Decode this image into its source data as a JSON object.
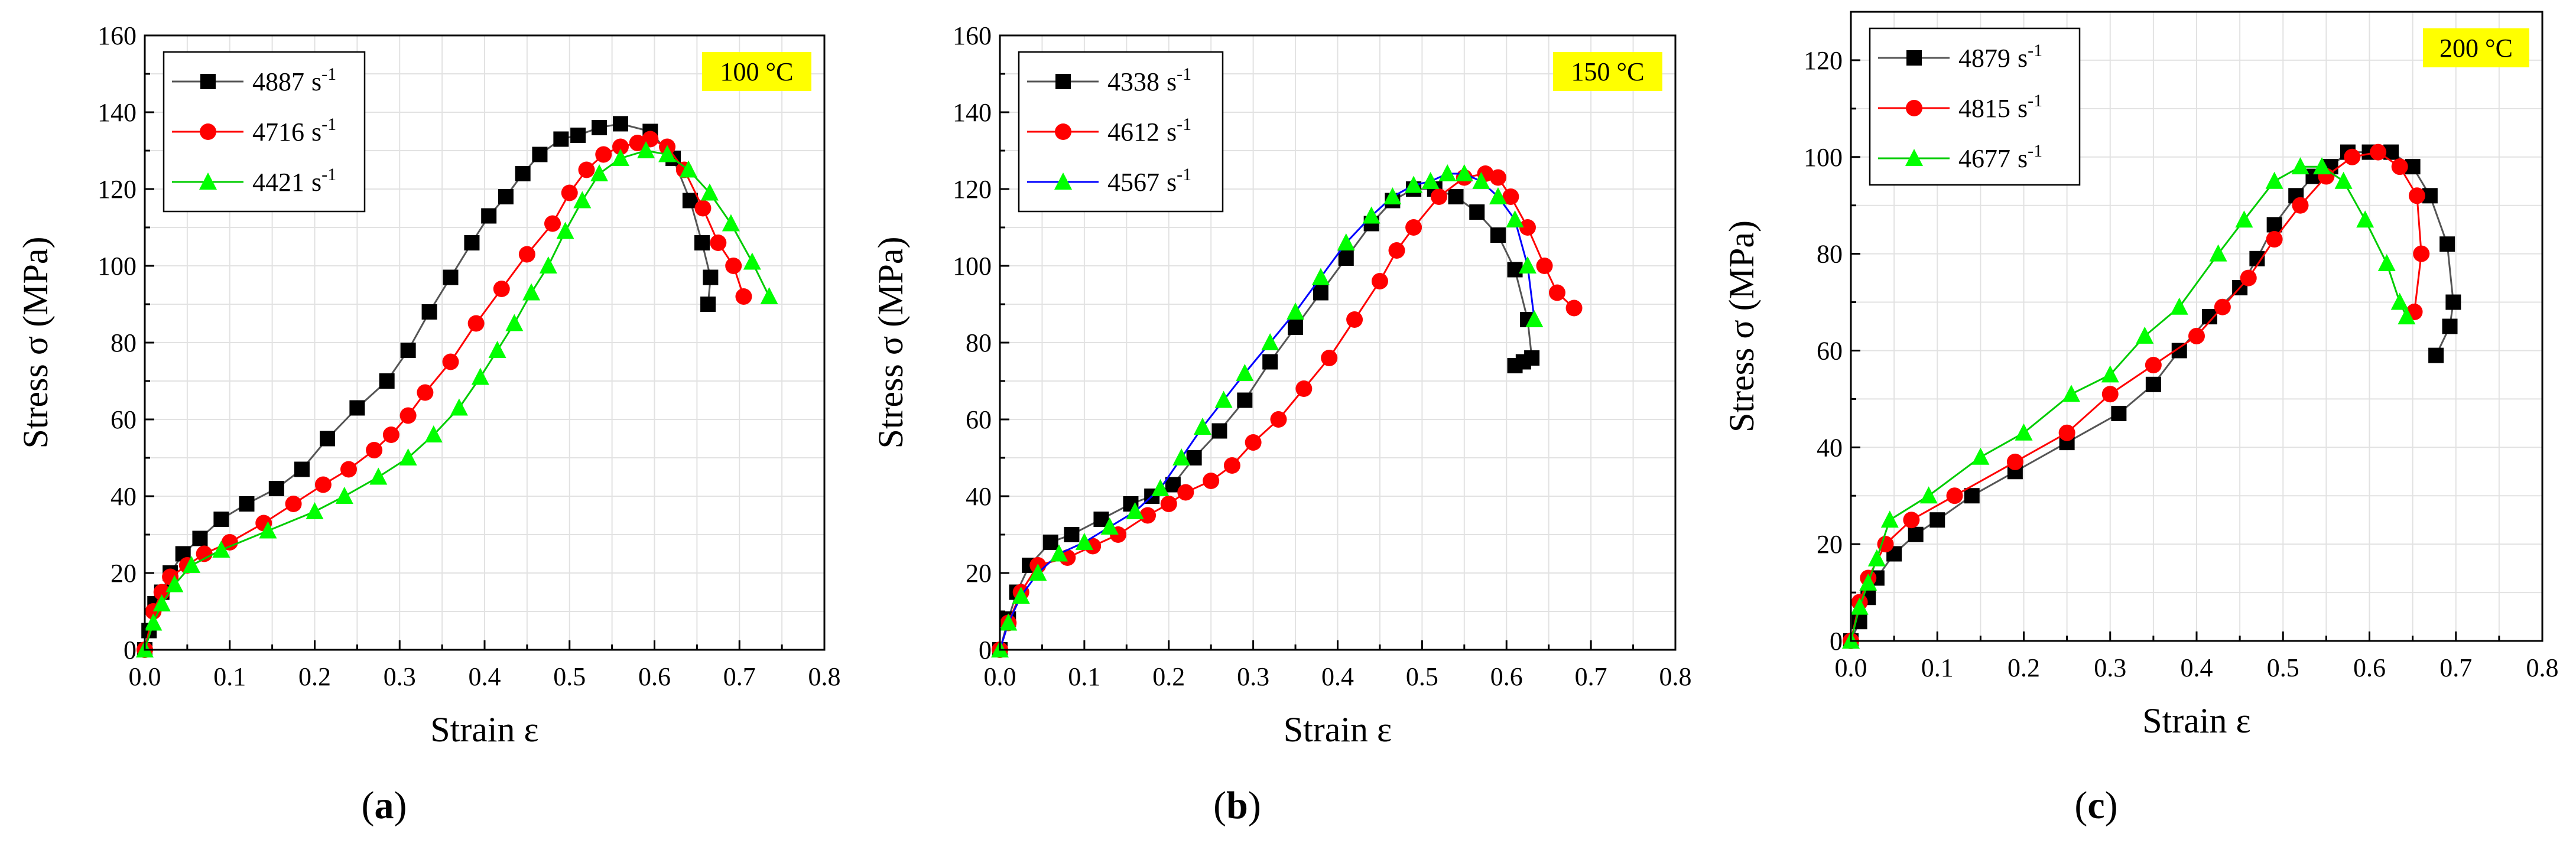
{
  "chart_data": [
    {
      "type": "line",
      "panel_label": "(a)",
      "panel_letter": "a",
      "temperature_label": "100 °C",
      "xlabel": "Strain ε",
      "ylabel": "Stress σ (MPa)",
      "xlim": [
        0,
        0.8
      ],
      "ylim": [
        0,
        160
      ],
      "xticks": [
        0,
        0.1,
        0.2,
        0.3,
        0.4,
        0.5,
        0.6,
        0.7,
        0.8
      ],
      "xtick_labels": [
        "0.0",
        "0.1",
        "0.2",
        "0.3",
        "0.4",
        "0.5",
        "0.6",
        "0.7",
        "0.8"
      ],
      "yticks": [
        0,
        20,
        40,
        60,
        80,
        100,
        120,
        140,
        160
      ],
      "ytick_labels": [
        "0",
        "20",
        "40",
        "60",
        "80",
        "100",
        "120",
        "140",
        "160"
      ],
      "grid": true,
      "legend_position": "top-left",
      "series": [
        {
          "name": "4887 s-1",
          "rate": "4887",
          "unit": "s",
          "exp": "-1",
          "color": "#000000",
          "line_color": "#555555",
          "marker": "square",
          "x": [
            0.0,
            0.005,
            0.012,
            0.02,
            0.03,
            0.045,
            0.065,
            0.09,
            0.12,
            0.155,
            0.185,
            0.215,
            0.25,
            0.285,
            0.31,
            0.335,
            0.36,
            0.385,
            0.405,
            0.425,
            0.445,
            0.465,
            0.49,
            0.51,
            0.535,
            0.56,
            0.595,
            0.622,
            0.642,
            0.656,
            0.666,
            0.663
          ],
          "y": [
            0,
            5,
            12,
            15,
            20,
            25,
            29,
            34,
            38,
            42,
            47,
            55,
            63,
            70,
            78,
            88,
            97,
            106,
            113,
            118,
            124,
            129,
            133,
            134,
            136,
            137,
            135,
            128,
            117,
            106,
            97,
            90
          ]
        },
        {
          "name": "4716 s-1",
          "rate": "4716",
          "unit": "s",
          "exp": "-1",
          "color": "#ff0000",
          "line_color": "#ff0000",
          "marker": "circle",
          "x": [
            0.0,
            0.01,
            0.02,
            0.03,
            0.05,
            0.07,
            0.1,
            0.14,
            0.175,
            0.21,
            0.24,
            0.27,
            0.29,
            0.31,
            0.33,
            0.36,
            0.39,
            0.42,
            0.45,
            0.48,
            0.5,
            0.52,
            0.54,
            0.56,
            0.58,
            0.595,
            0.615,
            0.635,
            0.657,
            0.675,
            0.693,
            0.705
          ],
          "y": [
            0,
            10,
            15,
            19,
            22,
            25,
            28,
            33,
            38,
            43,
            47,
            52,
            56,
            61,
            67,
            75,
            85,
            94,
            103,
            111,
            119,
            125,
            129,
            131,
            132,
            133,
            131,
            125,
            115,
            106,
            100,
            92
          ]
        },
        {
          "name": "4421 s-1",
          "rate": "4421",
          "unit": "s",
          "exp": "-1",
          "color": "#00ff00",
          "line_color": "#00cc00",
          "marker": "triangle",
          "x": [
            0.0,
            0.01,
            0.02,
            0.035,
            0.055,
            0.09,
            0.145,
            0.2,
            0.235,
            0.275,
            0.31,
            0.34,
            0.37,
            0.395,
            0.415,
            0.435,
            0.455,
            0.475,
            0.495,
            0.515,
            0.535,
            0.56,
            0.59,
            0.615,
            0.64,
            0.665,
            0.69,
            0.715,
            0.735
          ],
          "y": [
            0,
            7,
            12,
            17,
            22,
            26,
            31,
            36,
            40,
            45,
            50,
            56,
            63,
            71,
            78,
            85,
            93,
            100,
            109,
            117,
            124,
            128,
            130,
            129,
            125,
            119,
            111,
            101,
            92
          ]
        }
      ]
    },
    {
      "type": "line",
      "panel_label": "(b)",
      "panel_letter": "b",
      "temperature_label": "150 °C",
      "xlabel": "Strain ε",
      "ylabel": "Stress σ (MPa)",
      "xlim": [
        0,
        0.8
      ],
      "ylim": [
        0,
        160
      ],
      "xticks": [
        0,
        0.1,
        0.2,
        0.3,
        0.4,
        0.5,
        0.6,
        0.7,
        0.8
      ],
      "xtick_labels": [
        "0.0",
        "0.1",
        "0.2",
        "0.3",
        "0.4",
        "0.5",
        "0.6",
        "0.7",
        "0.8"
      ],
      "yticks": [
        0,
        20,
        40,
        60,
        80,
        100,
        120,
        140,
        160
      ],
      "ytick_labels": [
        "0",
        "20",
        "40",
        "60",
        "80",
        "100",
        "120",
        "140",
        "160"
      ],
      "grid": true,
      "legend_position": "top-left",
      "series": [
        {
          "name": "4338 s-1",
          "rate": "4338",
          "unit": "s",
          "exp": "-1",
          "color": "#000000",
          "line_color": "#555555",
          "marker": "square",
          "x": [
            0.0,
            0.01,
            0.02,
            0.035,
            0.06,
            0.085,
            0.12,
            0.155,
            0.18,
            0.205,
            0.23,
            0.26,
            0.29,
            0.32,
            0.35,
            0.38,
            0.41,
            0.44,
            0.465,
            0.49,
            0.515,
            0.54,
            0.565,
            0.59,
            0.61,
            0.625,
            0.63,
            0.62,
            0.61
          ],
          "y": [
            0,
            8,
            15,
            22,
            28,
            30,
            34,
            38,
            40,
            43,
            50,
            57,
            65,
            75,
            84,
            93,
            102,
            111,
            117,
            120,
            120,
            118,
            114,
            108,
            99,
            86,
            76,
            75,
            74
          ]
        },
        {
          "name": "4612 s-1",
          "rate": "4612",
          "unit": "s",
          "exp": "-1",
          "color": "#ff0000",
          "line_color": "#ff0000",
          "marker": "circle",
          "x": [
            0.0,
            0.01,
            0.025,
            0.045,
            0.08,
            0.11,
            0.14,
            0.175,
            0.2,
            0.22,
            0.25,
            0.275,
            0.3,
            0.33,
            0.36,
            0.39,
            0.42,
            0.45,
            0.47,
            0.49,
            0.52,
            0.55,
            0.575,
            0.59,
            0.605,
            0.625,
            0.645,
            0.66,
            0.68
          ],
          "y": [
            0,
            7,
            15,
            22,
            24,
            27,
            30,
            35,
            38,
            41,
            44,
            48,
            54,
            60,
            68,
            76,
            86,
            96,
            104,
            110,
            118,
            123,
            124,
            123,
            118,
            110,
            100,
            93,
            89
          ]
        },
        {
          "name": "4567 s-1",
          "rate": "4567",
          "unit": "s",
          "exp": "-1",
          "color": "#00ff00",
          "line_color": "#0000ff",
          "marker": "triangle",
          "x": [
            0.0,
            0.01,
            0.025,
            0.045,
            0.07,
            0.1,
            0.13,
            0.16,
            0.19,
            0.215,
            0.24,
            0.265,
            0.29,
            0.32,
            0.35,
            0.38,
            0.41,
            0.44,
            0.465,
            0.49,
            0.51,
            0.53,
            0.55,
            0.57,
            0.59,
            0.61,
            0.625,
            0.633
          ],
          "y": [
            0,
            7,
            14,
            20,
            25,
            28,
            32,
            36,
            42,
            50,
            58,
            65,
            72,
            80,
            88,
            97,
            106,
            113,
            118,
            121,
            122,
            124,
            124,
            122,
            118,
            112,
            100,
            86
          ]
        }
      ]
    },
    {
      "type": "line",
      "panel_label": "(c)",
      "panel_letter": "c",
      "temperature_label": "200 °C",
      "xlabel": "Strain ε",
      "ylabel": "Stress σ (MPa)",
      "xlim": [
        0,
        0.8
      ],
      "ylim": [
        0,
        130
      ],
      "xticks": [
        0,
        0.1,
        0.2,
        0.3,
        0.4,
        0.5,
        0.6,
        0.7,
        0.8
      ],
      "xtick_labels": [
        "0.0",
        "0.1",
        "0.2",
        "0.3",
        "0.4",
        "0.5",
        "0.6",
        "0.7",
        "0.8"
      ],
      "yticks": [
        0,
        20,
        40,
        60,
        80,
        100,
        120
      ],
      "ytick_labels": [
        "0",
        "20",
        "40",
        "60",
        "80",
        "100",
        "120"
      ],
      "grid": true,
      "legend_position": "top-left",
      "series": [
        {
          "name": "4879 s-1",
          "rate": "4879",
          "unit": "s",
          "exp": "-1",
          "color": "#000000",
          "line_color": "#555555",
          "marker": "square",
          "x": [
            0.0,
            0.01,
            0.02,
            0.03,
            0.05,
            0.075,
            0.1,
            0.14,
            0.19,
            0.25,
            0.31,
            0.35,
            0.38,
            0.415,
            0.45,
            0.47,
            0.49,
            0.515,
            0.535,
            0.555,
            0.575,
            0.6,
            0.625,
            0.65,
            0.67,
            0.69,
            0.697,
            0.693,
            0.677
          ],
          "y": [
            0,
            4,
            9,
            13,
            18,
            22,
            25,
            30,
            35,
            41,
            47,
            53,
            60,
            67,
            73,
            79,
            86,
            92,
            96,
            98,
            101,
            101,
            101,
            98,
            92,
            82,
            70,
            65,
            59
          ]
        },
        {
          "name": "4815 s-1",
          "rate": "4815",
          "unit": "s",
          "exp": "-1",
          "color": "#ff0000",
          "line_color": "#ff0000",
          "marker": "circle",
          "x": [
            0.0,
            0.01,
            0.02,
            0.04,
            0.07,
            0.12,
            0.19,
            0.25,
            0.3,
            0.35,
            0.4,
            0.43,
            0.46,
            0.49,
            0.52,
            0.55,
            0.58,
            0.61,
            0.635,
            0.655,
            0.66,
            0.652
          ],
          "y": [
            0,
            8,
            13,
            20,
            25,
            30,
            37,
            43,
            51,
            57,
            63,
            69,
            75,
            83,
            90,
            96,
            100,
            101,
            98,
            92,
            80,
            68
          ]
        },
        {
          "name": "4677 s-1",
          "rate": "4677",
          "unit": "s",
          "exp": "-1",
          "color": "#00ff00",
          "line_color": "#00cc00",
          "marker": "triangle",
          "x": [
            0.0,
            0.01,
            0.02,
            0.03,
            0.045,
            0.09,
            0.15,
            0.2,
            0.255,
            0.3,
            0.34,
            0.38,
            0.425,
            0.455,
            0.49,
            0.52,
            0.545,
            0.57,
            0.595,
            0.62,
            0.635,
            0.643
          ],
          "y": [
            0,
            7,
            12,
            17,
            25,
            30,
            38,
            43,
            51,
            55,
            63,
            69,
            80,
            87,
            95,
            98,
            98,
            95,
            87,
            78,
            70,
            67
          ]
        }
      ]
    }
  ]
}
